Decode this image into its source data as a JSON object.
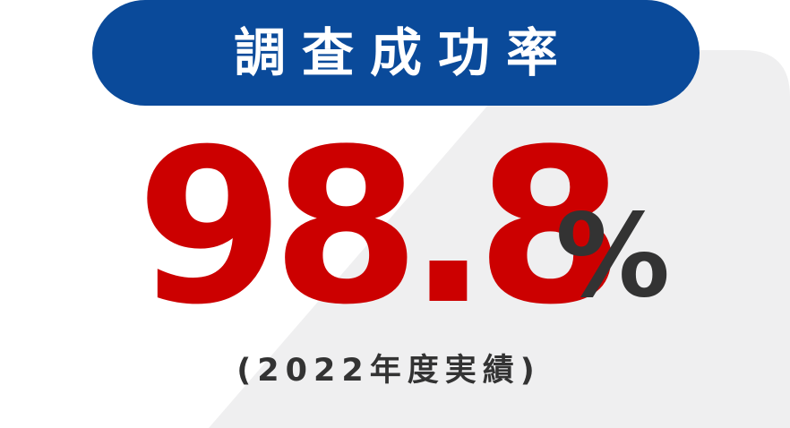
{
  "title": "調査成功率",
  "value": "98.8",
  "unit": "%",
  "note": "(2022年度実績)",
  "colors": {
    "title_pill": "#0a4a9a",
    "title_text": "#ffffff",
    "value": "#cc0000",
    "unit": "#333333",
    "note": "#333333",
    "card_background": "#efeff0",
    "page_background": "#ffffff"
  }
}
